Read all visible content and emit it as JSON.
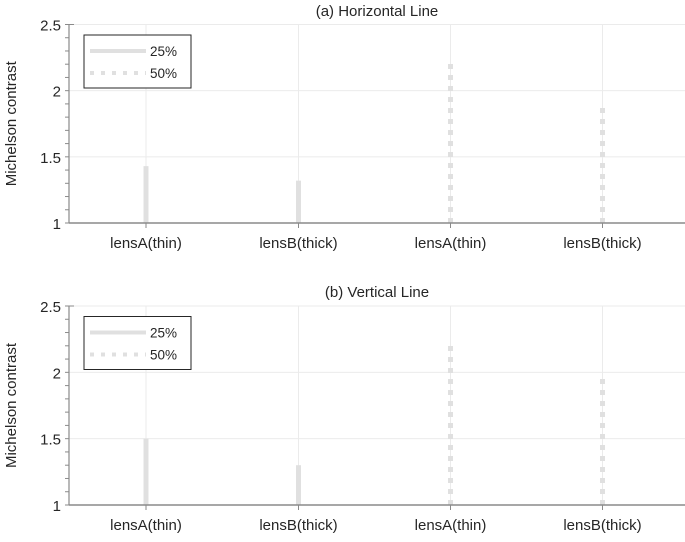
{
  "chart_data": [
    {
      "type": "bar",
      "title": "(a) Horizontal Line",
      "xlabel": "",
      "ylabel": "Michelson contrast",
      "ylim": [
        1,
        2.5
      ],
      "yticks": [
        "1",
        "1.5",
        "2",
        "2.5"
      ],
      "grid": true,
      "legend_position": "upper-left",
      "legend": [
        "25%",
        "50%"
      ],
      "categories": [
        "lensA(thin)",
        "lensB(thick)",
        "lensA(thin)",
        "lensB(thick)"
      ],
      "series": [
        {
          "name": "25%",
          "style": "solid",
          "values": [
            1.43,
            1.32,
            null,
            null
          ]
        },
        {
          "name": "50%",
          "style": "dotted",
          "values": [
            null,
            null,
            2.21,
            1.89
          ]
        }
      ]
    },
    {
      "type": "bar",
      "title": "(b) Vertical Line",
      "xlabel": "",
      "ylabel": "Michelson contrast",
      "ylim": [
        1,
        2.5
      ],
      "yticks": [
        "1",
        "1.5",
        "2",
        "2.5"
      ],
      "grid": true,
      "legend_position": "upper-left",
      "legend": [
        "25%",
        "50%"
      ],
      "categories": [
        "lensA(thin)",
        "lensB(thick)",
        "lensA(thin)",
        "lensB(thick)"
      ],
      "series": [
        {
          "name": "25%",
          "style": "solid",
          "values": [
            1.5,
            1.3,
            null,
            null
          ]
        },
        {
          "name": "50%",
          "style": "dotted",
          "values": [
            null,
            null,
            2.24,
            1.98
          ]
        }
      ]
    }
  ],
  "colors": {
    "bar": "#e0e0e0",
    "grid": "#ebebeb",
    "axis": "#8a8a8a",
    "legend_border": "#262626"
  }
}
